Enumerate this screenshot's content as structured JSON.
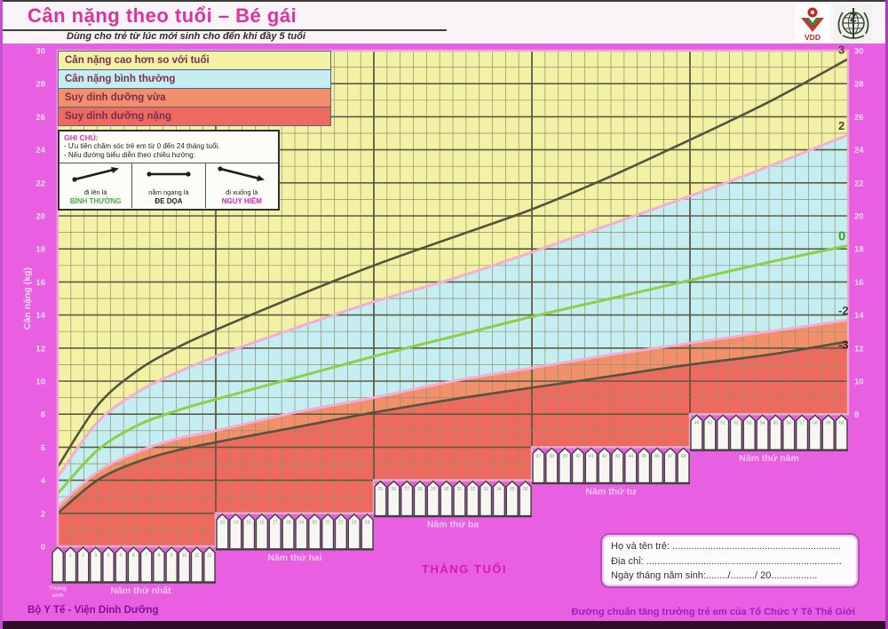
{
  "header": {
    "title": "Cân nặng theo tuổi – Bé gái",
    "subtitle": "Dùng cho trẻ từ lúc mới sinh cho đến khi đầy 5 tuổi",
    "logos": {
      "vdd_text": "VDD",
      "who": "who-emblem"
    }
  },
  "legend": {
    "items": [
      {
        "label": "Cân nặng cao hơn so với tuổi",
        "color": "#f2f1a5"
      },
      {
        "label": "Cân nặng bình thường",
        "color": "#c5eef3"
      },
      {
        "label": "Suy dinh dưỡng vừa",
        "color": "#f2906b"
      },
      {
        "label": "Suy dinh dưỡng nặng",
        "color": "#ee6a5e"
      }
    ]
  },
  "note_box": {
    "heading": "GHI CHÚ:",
    "lines": [
      "- Ưu tiên chăm sóc trẻ em từ 0 đến 24 tháng tuổi.",
      "- Nếu đường biểu diễn theo chiều hướng:"
    ],
    "directions": [
      {
        "arrow": "up",
        "caption": "đi lên là",
        "status": "BÌNH THƯỜNG",
        "status_color": "#3cb54a"
      },
      {
        "arrow": "flat",
        "caption": "nằm ngang là",
        "status": "ĐE DỌA",
        "status_color": "#1e1e1e"
      },
      {
        "arrow": "down",
        "caption": "đi xuống là",
        "status": "NGUY HIỂM",
        "status_color": "#e11fc3"
      }
    ]
  },
  "axes": {
    "y_label": "Cân nặng (kg)",
    "x_label": "THÁNG TUỔI",
    "left_ticks": [
      30,
      28,
      26,
      24,
      22,
      20,
      18,
      16,
      14,
      12,
      10,
      8,
      6,
      4,
      2,
      0
    ],
    "right_ticks": [
      30,
      28,
      26,
      24,
      22,
      20,
      18,
      16,
      14,
      12,
      10,
      8
    ]
  },
  "year_bands": [
    {
      "label": "Năm thứ nhất",
      "months": [
        1,
        2,
        3,
        4,
        5,
        6,
        7,
        8,
        9,
        10,
        11,
        12
      ]
    },
    {
      "label": "Năm thứ hai",
      "months": [
        13,
        14,
        15,
        16,
        17,
        18,
        19,
        20,
        21,
        22,
        23,
        24
      ]
    },
    {
      "label": "Năm thứ ba",
      "months": [
        25,
        26,
        27,
        28,
        29,
        30,
        31,
        32,
        33,
        34,
        35,
        36
      ]
    },
    {
      "label": "Năm thứ tư",
      "months": [
        37,
        38,
        39,
        40,
        41,
        42,
        43,
        44,
        45,
        46,
        47,
        48
      ]
    },
    {
      "label": "Năm thứ năm",
      "months": [
        49,
        50,
        51,
        52,
        53,
        54,
        55,
        56,
        57,
        58,
        59,
        60
      ]
    }
  ],
  "birth_label": "Tháng sinh",
  "chart_data": {
    "type": "line",
    "title": "Cân nặng theo tuổi – Bé gái",
    "xlabel": "THÁNG TUỔI",
    "ylabel": "Cân nặng (kg)",
    "xlim": [
      0,
      60
    ],
    "ylim": [
      0,
      30
    ],
    "grid": true,
    "x": [
      0,
      3,
      6,
      9,
      12,
      18,
      24,
      30,
      36,
      42,
      48,
      54,
      60
    ],
    "series": [
      {
        "name": "3",
        "color": "#55543d",
        "label_color": "#4a4a36",
        "values": [
          4.8,
          8.5,
          10.6,
          12.0,
          13.1,
          15.1,
          17.0,
          18.7,
          20.4,
          22.4,
          24.6,
          26.9,
          29.5
        ]
      },
      {
        "name": "2",
        "color": "#f4aed2",
        "label_color": "#4a4a36",
        "values": [
          4.2,
          7.5,
          9.3,
          10.5,
          11.5,
          13.2,
          14.8,
          16.2,
          17.8,
          19.5,
          21.2,
          23.0,
          24.9
        ]
      },
      {
        "name": "0",
        "color": "#8ccf49",
        "label_color": "#38a02c",
        "values": [
          3.2,
          5.8,
          7.3,
          8.2,
          8.9,
          10.2,
          11.5,
          12.7,
          13.9,
          15.0,
          16.1,
          17.2,
          18.2
        ]
      },
      {
        "name": "-2",
        "color": "#f4aed2",
        "label_color": "#43432f",
        "values": [
          2.4,
          4.5,
          5.7,
          6.5,
          7.0,
          8.1,
          9.0,
          10.0,
          10.8,
          11.6,
          12.3,
          13.0,
          13.7
        ]
      },
      {
        "name": "-3",
        "color": "#55543d",
        "label_color": "#2b2b20",
        "values": [
          2.0,
          4.0,
          5.1,
          5.8,
          6.3,
          7.2,
          8.1,
          8.9,
          9.6,
          10.3,
          11.0,
          11.6,
          12.4
        ]
      }
    ],
    "regions": [
      {
        "name": "Cân nặng cao hơn so với tuổi",
        "between": [
          "top",
          "2"
        ],
        "color": "#f2f1a5"
      },
      {
        "name": "Cân nặng bình thường",
        "between": [
          "2",
          "-2"
        ],
        "color": "#c5eef3"
      },
      {
        "name": "Suy dinh dưỡng vừa",
        "between": [
          "-2",
          "-3"
        ],
        "color": "#f2906b"
      },
      {
        "name": "Suy dinh dưỡng nặng",
        "between": [
          "-3",
          "floor"
        ],
        "color": "#ee6a5e"
      }
    ],
    "floor_steps_kg_by_year": [
      0,
      2,
      4,
      6,
      8
    ],
    "legend_position": "top-left"
  },
  "form_box": {
    "lines": [
      "Họ và tên trẻ: ..............................................................",
      "Địa chỉ: ........................................................................",
      "Ngày tháng năm sinh:......../........./ 20................."
    ]
  },
  "footer": {
    "left": "Bộ Y Tế - Viện Dinh Dưỡng",
    "right": "Đường chuẩn tăng trưởng trẻ em của Tổ Chức Y Tế Thế Giới"
  }
}
